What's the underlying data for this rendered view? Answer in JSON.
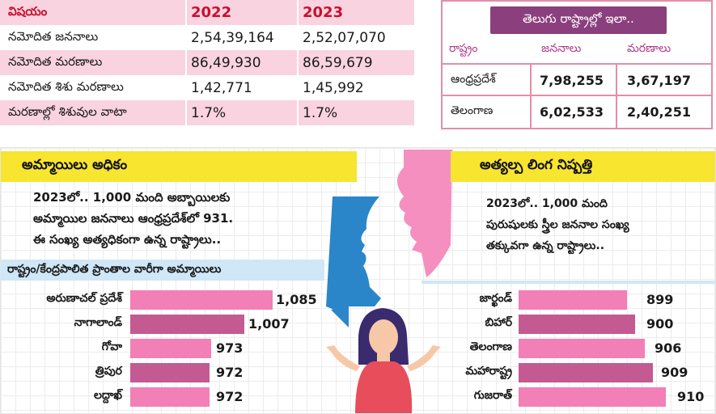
{
  "top_table": {
    "header": [
      "విషయం",
      "2022",
      "2023"
    ],
    "rows": [
      [
        "నమోదిత జననాలు",
        "2,54,39,164",
        "2,52,07,070"
      ],
      [
        "నమోదిత మరణాలు",
        "86,49,930",
        "86,59,679"
      ],
      [
        "నమోదిత శిశు మరణాలు",
        "1,42,771",
        "1,45,992"
      ],
      [
        "మరణాల్లో శిశువుల వాటా",
        "1.7%",
        "1.7%"
      ]
    ]
  },
  "states_table": {
    "title": "తెలుగు రాష్ట్రాల్లో ఇలా..",
    "header": [
      "రాష్ట్రం",
      "జననాలు",
      "మరణాలు"
    ],
    "rows": [
      [
        "ఆంధ్రప్రదేశ్",
        "7,98,255",
        "3,67,197"
      ],
      [
        "తెలంగాణ",
        "6,02,533",
        "2,40,251"
      ]
    ]
  },
  "left_panel": {
    "heading": "అమ్మాయిలు అధికం",
    "text": [
      "2023లో.. 1,000 మంది అబ్బాయిలకు",
      "అమ్మాయిల జననాలు ఆంధ్రప్రదేశ్‌లో 931.",
      "ఈ సంఖ్య అత్యధికంగా ఉన్న రాష్ట్రాలు.."
    ],
    "subheading": "రాష్ట్రం/కేంద్రపాలిత ప్రాంతాల వారీగా అమ్మాయిలు",
    "bars": [
      {
        "label": "అరుణాచల్ ప్రదేశ్",
        "value": 1085,
        "display": "1,085"
      },
      {
        "label": "నాగాలాండ్",
        "value": 1007,
        "display": "1,007"
      },
      {
        "label": "గోవా",
        "value": 973,
        "display": "973"
      },
      {
        "label": "త్రిపుర",
        "value": 972,
        "display": "972"
      },
      {
        "label": "లద్దాఖ్",
        "value": 972,
        "display": "972"
      }
    ]
  },
  "right_panel": {
    "heading": "అత్యల్ప లింగ నిష్పత్తి",
    "text": [
      "2023లో.. 1,000 మంది",
      "పురుషులకు స్త్రీల జననాల సంఖ్య",
      "తక్కువగా ఉన్న రాష్ట్రాలు.."
    ],
    "bars": [
      {
        "label": "జార్ఖండ్",
        "value": 899,
        "display": "899"
      },
      {
        "label": "బిహార్",
        "value": 900,
        "display": "900"
      },
      {
        "label": "తెలంగాణ",
        "value": 906,
        "display": "906"
      },
      {
        "label": "మహారాష్ట్ర",
        "value": 909,
        "display": "909"
      },
      {
        "label": "గుజరాత్",
        "value": 910,
        "display": "910"
      }
    ]
  },
  "colors": {
    "row_pink": "#f9d3e0",
    "row_white": "#ffffff",
    "header_red": "#c8102e",
    "purple": "#8b3f7d",
    "yellow": "#f7e52f",
    "light_blue": "#cfe7f6",
    "bar_light": "#f27fb6",
    "bar_dark": "#c45a92",
    "face_blue": "#2a86c8",
    "face_pink": "#f48fc0",
    "woman_shirt": "#e84d5b",
    "woman_hair": "#3a2a6e"
  }
}
